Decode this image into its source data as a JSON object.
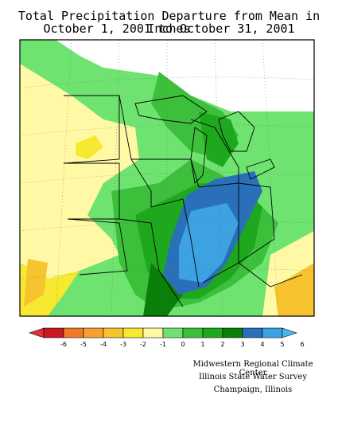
{
  "title": {
    "line1": "Total Precipitation Departure from Mean in Inches",
    "line2": "October 1, 2001 to October 31, 2001"
  },
  "legend": {
    "colors": [
      "#e0303a",
      "#c81a20",
      "#f07a28",
      "#f5a030",
      "#f7c430",
      "#f7e830",
      "#fff9a6",
      "#6fe36f",
      "#3cc03c",
      "#1ea81e",
      "#0a7f0a",
      "#2a70b8",
      "#3ca2e2",
      "#48b8f0"
    ],
    "labels": [
      "-6",
      "-5",
      "-4",
      "-3",
      "-2",
      "-1",
      "0",
      "1",
      "2",
      "3",
      "4",
      "5",
      "6"
    ]
  },
  "credits": {
    "line1": "Midwestern Regional Climate Center",
    "line2": "Illinois State Water Survey",
    "line3": "Champaign, Illinois"
  }
}
